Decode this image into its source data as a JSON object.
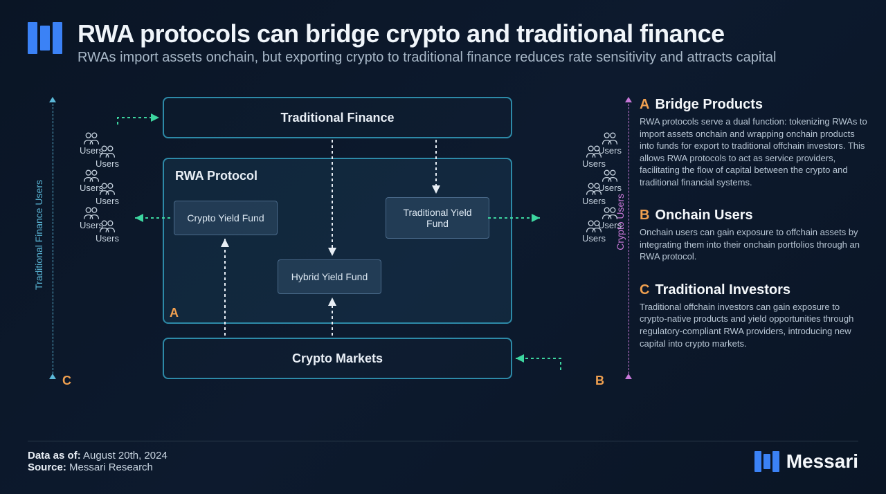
{
  "title": "RWA protocols can bridge crypto and traditional finance",
  "subtitle": "RWAs import assets onchain, but exporting crypto to traditional finance reduces rate sensitivity and attracts capital",
  "diagram": {
    "type": "flowchart",
    "colors": {
      "background": "#0a1525",
      "box_border": "#2d8aa8",
      "box_fill": "rgba(30,70,95,0.35)",
      "fund_border": "#4a6a8a",
      "fund_fill": "rgba(60,90,120,0.4)",
      "accent_orange": "#f0a050",
      "left_axis": "#5bb8d8",
      "right_axis": "#c878d8",
      "flow_green": "#3dd6a0",
      "flow_white": "#e8eef5",
      "text_primary": "#e8eef5",
      "text_secondary": "#a8b8c8"
    },
    "boxes": {
      "traditional_finance": "Traditional Finance",
      "rwa_protocol": "RWA Protocol",
      "crypto_markets": "Crypto Markets"
    },
    "funds": {
      "crypto_yield": "Crypto Yield Fund",
      "traditional_yield": "Traditional Yield Fund",
      "hybrid_yield": "Hybrid Yield Fund"
    },
    "letter_marks": {
      "a": "A",
      "b": "B",
      "c": "C"
    },
    "axis_labels": {
      "left": "Traditional Finance Users",
      "right": "Crypto Users"
    },
    "user_label": "Users",
    "left_user_count": 6,
    "right_user_count": 6
  },
  "sidebar": [
    {
      "mark": "A",
      "title": "Bridge Products",
      "body": "RWA protocols serve a dual function: tokenizing RWAs to import assets onchain and wrapping onchain products into funds for export to traditional offchain investors. This allows RWA protocols to act as service providers, facilitating the flow of capital between the crypto and traditional financial systems."
    },
    {
      "mark": "B",
      "title": "Onchain Users",
      "body": "Onchain users can gain exposure to offchain assets by integrating them into their onchain portfolios through an RWA protocol."
    },
    {
      "mark": "C",
      "title": "Traditional Investors",
      "body": "Traditional offchain investors can gain exposure to crypto-native products and yield opportunities through regulatory-compliant RWA providers, introducing new capital into crypto markets."
    }
  ],
  "footer": {
    "date_label": "Data as of:",
    "date_value": "August 20th, 2024",
    "source_label": "Source:",
    "source_value": "Messari Research",
    "brand": "Messari"
  }
}
